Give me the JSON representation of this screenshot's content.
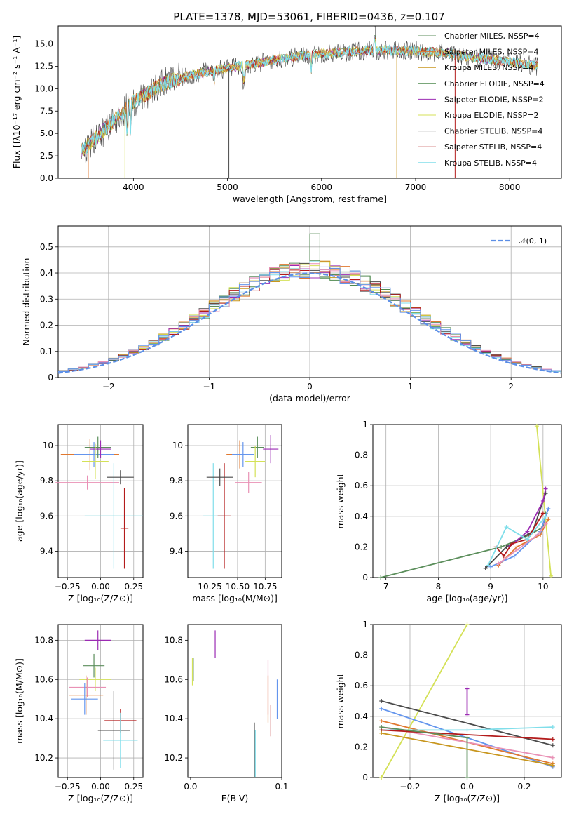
{
  "figure": {
    "title": "PLATE=1378, MJD=53061, FIBERID=0436, z=0.107"
  },
  "chart_data": [
    {
      "type": "line",
      "id": "spectrum",
      "xlabel": "wavelength [Angstrom, rest frame]",
      "ylabel": "Flux [fλ10⁻¹⁷ erg cm⁻² s⁻¹ A⁻¹]",
      "xlim": [
        3200,
        8550
      ],
      "ylim": [
        0,
        17
      ],
      "xticks": [
        4000,
        5000,
        6000,
        7000,
        8000
      ],
      "yticks": [
        0.0,
        2.5,
        5.0,
        7.5,
        10.0,
        12.5,
        15.0
      ],
      "grid": false,
      "legend_placement": "right",
      "continuum_nodes": {
        "x": [
          3450,
          3600,
          3800,
          4000,
          4300,
          4600,
          5000,
          5300,
          5600,
          6000,
          6400,
          6700,
          7000,
          7300,
          7600,
          8000,
          8300
        ],
        "y": [
          3.0,
          4.5,
          6.5,
          8.5,
          10.5,
          11.5,
          12.3,
          12.8,
          13.4,
          13.9,
          14.2,
          14.3,
          14.2,
          14.0,
          13.5,
          13.0,
          12.5
        ]
      },
      "series": [
        {
          "name": "Chabrier MILES, N_SSP=4",
          "color": "#5b8e5b"
        },
        {
          "name": "Salpeter MILES, N_SSP=4",
          "color": "#e0782f"
        },
        {
          "name": "Kroupa MILES, N_SSP=4",
          "color": "#c8961e"
        },
        {
          "name": "Chabrier ELODIE, N_SSP=4",
          "color": "#4f8a4f"
        },
        {
          "name": "Salpeter ELODIE, N_SSP=2",
          "color": "#9b2bb3"
        },
        {
          "name": "Kroupa ELODIE, N_SSP=2",
          "color": "#d4e157"
        },
        {
          "name": "Chabrier STELIB, N_SSP=4",
          "color": "#4a4a4a"
        },
        {
          "name": "Salpeter STELIB, N_SSP=4",
          "color": "#b31b1b"
        },
        {
          "name": "Kroupa STELIB, N_SSP=4",
          "color": "#80deea"
        }
      ]
    },
    {
      "type": "histogram",
      "id": "residuals",
      "xlabel": "(data-model)/error",
      "ylabel": "Normed distribution",
      "xlim": [
        -2.5,
        2.5
      ],
      "ylim": [
        0,
        0.58
      ],
      "xticks": [
        -2,
        -1,
        0,
        1,
        2
      ],
      "yticks": [
        0.0,
        0.1,
        0.2,
        0.3,
        0.4,
        0.5
      ],
      "grid": true,
      "legend_placement": "top-right",
      "gaussian_label": "𝒩(0, 1)",
      "gaussian_color": "#5b8ee6",
      "bin_width": 0.1,
      "bin_start": -2.5,
      "colors": [
        "#5b8e5b",
        "#e0782f",
        "#c8961e",
        "#4f8a4f",
        "#9b2bb3",
        "#d4e157",
        "#4a4a4a",
        "#b31b1b",
        "#80deea",
        "#e991b5",
        "#6495ed"
      ],
      "highlight": [
        {
          "x": 0.05,
          "value": 0.55,
          "color": "#5b8e5b"
        }
      ]
    },
    {
      "type": "scatter",
      "id": "age-vs-Z",
      "xlabel": "Z [log₁₀(Z/Z⊙)]",
      "ylabel": "age  [log₁₀(age/yr)]",
      "xlim": [
        -0.32,
        0.32
      ],
      "ylim": [
        9.25,
        10.12
      ],
      "xticks": [
        -0.25,
        0.0,
        0.25
      ],
      "xticklabels": [
        "−0.25",
        "0.00",
        "0.25"
      ],
      "yticks": [
        9.4,
        9.6,
        9.8,
        10.0
      ],
      "grid": true,
      "points": [
        {
          "x": -0.08,
          "y": 9.95,
          "ex": 0.22,
          "ey": 0.09,
          "color": "#e0782f"
        },
        {
          "x": -0.05,
          "y": 9.95,
          "ex": 0.15,
          "ey": 0.07,
          "color": "#6495ed"
        },
        {
          "x": -0.02,
          "y": 9.99,
          "ex": 0.1,
          "ey": 0.06,
          "color": "#5b8e5b"
        },
        {
          "x": 0.0,
          "y": 9.98,
          "ex": 0.08,
          "ey": 0.05,
          "color": "#9b2bb3"
        },
        {
          "x": -0.04,
          "y": 9.91,
          "ex": 0.1,
          "ey": 0.1,
          "color": "#d4e157"
        },
        {
          "x": -0.1,
          "y": 9.79,
          "ex": 0.24,
          "ey": 0.04,
          "color": "#e991b5"
        },
        {
          "x": 0.1,
          "y": 9.6,
          "ex": 0.22,
          "ey": 0.3,
          "color": "#80deea"
        },
        {
          "x": 0.18,
          "y": 9.53,
          "ex": 0.03,
          "ey": 0.23,
          "color": "#b31b1b"
        },
        {
          "x": 0.15,
          "y": 9.82,
          "ex": 0.1,
          "ey": 0.04,
          "color": "#4a4a4a"
        }
      ]
    },
    {
      "type": "scatter",
      "id": "age-vs-mass",
      "xlabel": "mass [log₁₀(M/M⊙)]",
      "ylabel": "",
      "xlim": [
        10.05,
        10.9
      ],
      "ylim": [
        9.25,
        10.12
      ],
      "xticks": [
        10.25,
        10.5,
        10.75
      ],
      "xticklabels": [
        "10.25",
        "10.50",
        "10.75"
      ],
      "yticks": [
        9.4,
        9.6,
        9.8,
        10.0
      ],
      "grid": true,
      "points": [
        {
          "x": 10.52,
          "y": 9.95,
          "ex": 0.12,
          "ey": 0.08,
          "color": "#e0782f"
        },
        {
          "x": 10.55,
          "y": 9.95,
          "ex": 0.1,
          "ey": 0.07,
          "color": "#6495ed"
        },
        {
          "x": 10.68,
          "y": 9.99,
          "ex": 0.06,
          "ey": 0.06,
          "color": "#5b8e5b"
        },
        {
          "x": 10.8,
          "y": 9.98,
          "ex": 0.07,
          "ey": 0.08,
          "color": "#9b2bb3"
        },
        {
          "x": 10.66,
          "y": 9.91,
          "ex": 0.09,
          "ey": 0.09,
          "color": "#d4e157"
        },
        {
          "x": 10.6,
          "y": 9.79,
          "ex": 0.12,
          "ey": 0.06,
          "color": "#e991b5"
        },
        {
          "x": 10.28,
          "y": 9.6,
          "ex": 0.09,
          "ey": 0.3,
          "color": "#80deea"
        },
        {
          "x": 10.38,
          "y": 9.6,
          "ex": 0.06,
          "ey": 0.3,
          "color": "#b31b1b"
        },
        {
          "x": 10.34,
          "y": 9.82,
          "ex": 0.12,
          "ey": 0.05,
          "color": "#4a4a4a"
        }
      ]
    },
    {
      "type": "line",
      "id": "massweight-vs-age",
      "xlabel": "age  [log₁₀(age/yr)]",
      "ylabel": "mass weight",
      "xlim": [
        6.75,
        10.35
      ],
      "ylim": [
        0,
        1.0
      ],
      "xticks": [
        7,
        8,
        9,
        10
      ],
      "yticks": [
        0.0,
        0.2,
        0.4,
        0.6,
        0.8,
        1.0
      ],
      "grid": true,
      "series": [
        {
          "color": "#d4e157",
          "x": [
            9.88,
            10.15
          ],
          "y": [
            0.99,
            0.01
          ]
        },
        {
          "color": "#5b8e5b",
          "x": [
            6.9,
            9.2,
            9.75,
            10.0,
            10.05
          ],
          "y": [
            0.0,
            0.2,
            0.28,
            0.33,
            0.42
          ]
        },
        {
          "color": "#4a4a4a",
          "x": [
            8.9,
            9.3,
            9.8,
            10.05
          ],
          "y": [
            0.06,
            0.2,
            0.3,
            0.55
          ]
        },
        {
          "color": "#9b2bb3",
          "x": [
            9.35,
            9.7,
            10.0,
            10.05
          ],
          "y": [
            0.2,
            0.3,
            0.5,
            0.58
          ]
        },
        {
          "color": "#b31b1b",
          "x": [
            9.1,
            9.25,
            9.4,
            9.7,
            10.0
          ],
          "y": [
            0.2,
            0.14,
            0.22,
            0.25,
            0.42
          ]
        },
        {
          "color": "#e0782f",
          "x": [
            9.15,
            9.5,
            9.95,
            10.1
          ],
          "y": [
            0.08,
            0.2,
            0.28,
            0.38
          ]
        },
        {
          "color": "#6495ed",
          "x": [
            9.0,
            9.45,
            9.95,
            10.1
          ],
          "y": [
            0.07,
            0.14,
            0.3,
            0.45
          ]
        },
        {
          "color": "#80deea",
          "x": [
            8.95,
            9.3,
            9.7,
            10.05
          ],
          "y": [
            0.08,
            0.33,
            0.25,
            0.4
          ]
        },
        {
          "color": "#e991b5",
          "x": [
            9.15,
            9.5,
            9.9,
            10.05
          ],
          "y": [
            0.09,
            0.18,
            0.28,
            0.35
          ]
        }
      ]
    },
    {
      "type": "scatter",
      "id": "mass-vs-Z",
      "xlabel": "Z [log₁₀(Z/Z⊙)]",
      "ylabel": "mass [log₁₀(M/M⊙)]",
      "xlim": [
        -0.32,
        0.32
      ],
      "ylim": [
        10.1,
        10.88
      ],
      "xticks": [
        -0.25,
        0.0,
        0.25
      ],
      "xticklabels": [
        "−0.25",
        "0.00",
        "0.25"
      ],
      "yticks": [
        10.2,
        10.4,
        10.6,
        10.8
      ],
      "grid": true,
      "points": [
        {
          "x": -0.02,
          "y": 10.8,
          "ex": 0.1,
          "ey": 0.05,
          "color": "#9b2bb3"
        },
        {
          "x": -0.05,
          "y": 10.67,
          "ex": 0.08,
          "ey": 0.06,
          "color": "#5b8e5b"
        },
        {
          "x": -0.04,
          "y": 10.6,
          "ex": 0.12,
          "ey": 0.06,
          "color": "#d4e157"
        },
        {
          "x": -0.1,
          "y": 10.56,
          "ex": 0.14,
          "ey": 0.05,
          "color": "#e991b5"
        },
        {
          "x": -0.11,
          "y": 10.52,
          "ex": 0.13,
          "ey": 0.1,
          "color": "#e0782f"
        },
        {
          "x": -0.12,
          "y": 10.5,
          "ex": 0.1,
          "ey": 0.08,
          "color": "#6495ed"
        },
        {
          "x": 0.15,
          "y": 10.39,
          "ex": 0.12,
          "ey": 0.06,
          "color": "#b31b1b"
        },
        {
          "x": 0.1,
          "y": 10.34,
          "ex": 0.12,
          "ey": 0.2,
          "color": "#4a4a4a"
        },
        {
          "x": 0.15,
          "y": 10.29,
          "ex": 0.13,
          "ey": 0.14,
          "color": "#80deea"
        }
      ]
    },
    {
      "type": "scatter",
      "id": "mass-vs-ebv",
      "xlabel": "E(B-V)",
      "ylabel": "",
      "xlim": [
        -0.003,
        0.1
      ],
      "ylim": [
        10.1,
        10.88
      ],
      "xticks": [
        0.0,
        0.1
      ],
      "xticklabels": [
        "0.0",
        "0.1"
      ],
      "yticks": [
        10.2,
        10.4,
        10.6,
        10.8
      ],
      "grid": false,
      "points": [
        {
          "x": 0.027,
          "y": 10.78,
          "ex": 0,
          "ey": 0.07,
          "color": "#9b2bb3"
        },
        {
          "x": 0.002,
          "y": 10.64,
          "ex": 0,
          "ey": 0.07,
          "color": "#d4e157"
        },
        {
          "x": 0.003,
          "y": 10.65,
          "ex": 0,
          "ey": 0.06,
          "color": "#5b8e5b"
        },
        {
          "x": 0.085,
          "y": 10.56,
          "ex": 0,
          "ey": 0.14,
          "color": "#e991b5"
        },
        {
          "x": 0.085,
          "y": 10.5,
          "ex": 0,
          "ey": 0.12,
          "color": "#e0782f"
        },
        {
          "x": 0.095,
          "y": 10.5,
          "ex": 0,
          "ey": 0.1,
          "color": "#6495ed"
        },
        {
          "x": 0.088,
          "y": 10.39,
          "ex": 0,
          "ey": 0.08,
          "color": "#b31b1b"
        },
        {
          "x": 0.07,
          "y": 10.24,
          "ex": 0,
          "ey": 0.14,
          "color": "#4a4a4a"
        },
        {
          "x": 0.071,
          "y": 10.22,
          "ex": 0,
          "ey": 0.12,
          "color": "#80deea"
        }
      ]
    },
    {
      "type": "line",
      "id": "massweight-vs-Z",
      "xlabel": "Z [log₁₀(Z/Z⊙)]",
      "ylabel": "mass weight",
      "xlim": [
        -0.33,
        0.33
      ],
      "ylim": [
        0,
        1.0
      ],
      "xticks": [
        -0.2,
        0.0,
        0.2
      ],
      "xticklabels": [
        "−0.2",
        "0.0",
        "0.2"
      ],
      "yticks": [
        0.0,
        0.2,
        0.4,
        0.6,
        0.8,
        1.0
      ],
      "grid": true,
      "series": [
        {
          "color": "#d4e157",
          "x": [
            -0.3,
            0.0
          ],
          "y": [
            0.0,
            1.0
          ]
        },
        {
          "color": "#4a4a4a",
          "x": [
            -0.3,
            0.3
          ],
          "y": [
            0.5,
            0.21
          ]
        },
        {
          "color": "#6495ed",
          "x": [
            -0.3,
            0.3
          ],
          "y": [
            0.45,
            0.07
          ]
        },
        {
          "color": "#e0782f",
          "x": [
            -0.3,
            0.3
          ],
          "y": [
            0.37,
            0.09
          ]
        },
        {
          "color": "#e991b5",
          "x": [
            -0.3,
            0.3
          ],
          "y": [
            0.33,
            0.13
          ]
        },
        {
          "color": "#80deea",
          "x": [
            -0.3,
            0.0,
            0.3
          ],
          "y": [
            0.31,
            0.31,
            0.33
          ]
        },
        {
          "color": "#b31b1b",
          "x": [
            -0.3,
            0.3
          ],
          "y": [
            0.31,
            0.25
          ]
        },
        {
          "color": "#5b8e5b",
          "x": [
            -0.3,
            0.0,
            0.0
          ],
          "y": [
            0.33,
            0.26,
            0.0
          ]
        },
        {
          "color": "#9b2bb3",
          "x": [
            0.0,
            0.0
          ],
          "y": [
            0.58,
            0.41
          ]
        },
        {
          "color": "#c8961e",
          "x": [
            -0.3,
            0.3
          ],
          "y": [
            0.29,
            0.08
          ]
        }
      ]
    }
  ]
}
